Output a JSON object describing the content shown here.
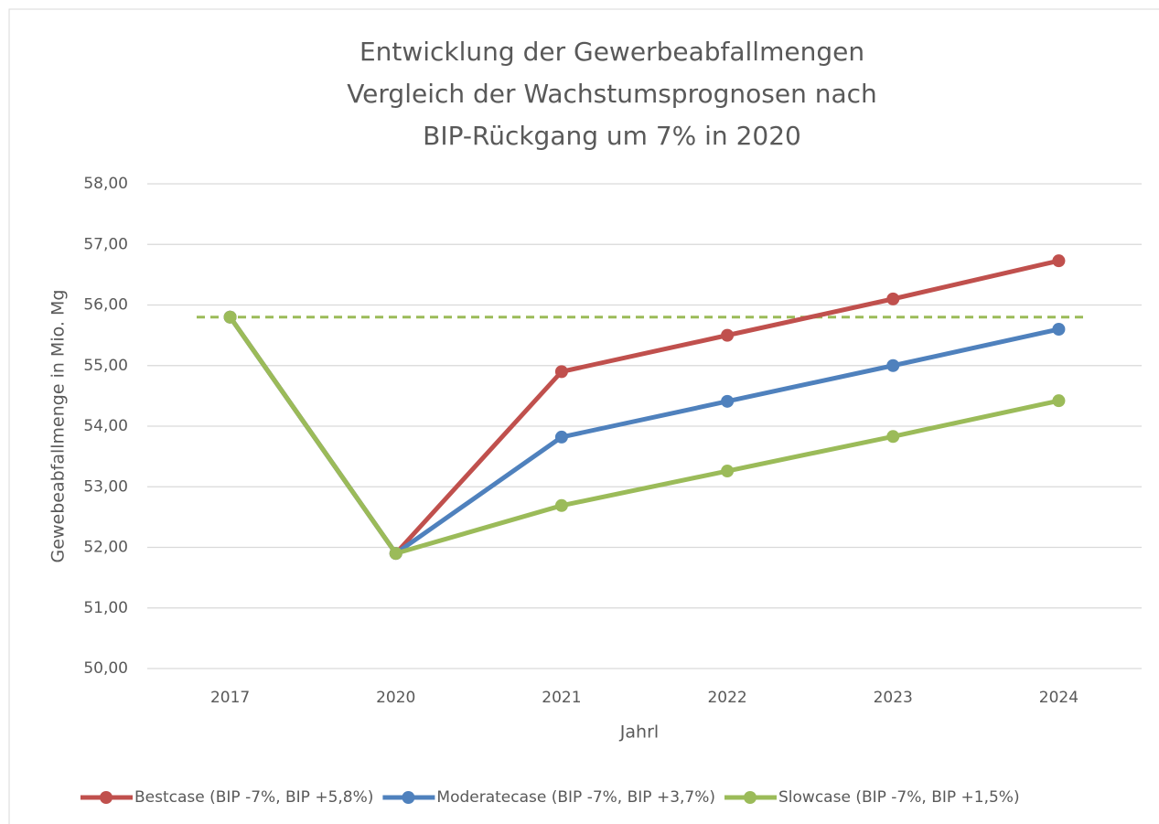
{
  "chart_data": {
    "type": "line",
    "title": [
      "Entwicklung der Gewerbeabfallmengen",
      "Vergleich der Wachstumsprognosen nach",
      "BIP-Rückgang um 7% in 2020"
    ],
    "x_label": "Jahrl",
    "y_label": "Gewebeabfallmenge in Mio. Mg",
    "categories": [
      "2017",
      "2020",
      "2021",
      "2022",
      "2023",
      "2024"
    ],
    "series": [
      {
        "name": "Bestcase (BIP -7%, BIP +5,8%)",
        "color": "#c0504d",
        "values": [
          55.8,
          51.9,
          54.9,
          55.5,
          56.1,
          56.73
        ]
      },
      {
        "name": "Moderatecase (BIP -7%, BIP +3,7%)",
        "color": "#4f81bd",
        "values": [
          55.8,
          51.9,
          53.82,
          54.41,
          55.0,
          55.6
        ]
      },
      {
        "name": "Slowcase (BIP -7%, BIP +1,5%)",
        "color": "#9bbb59",
        "values": [
          55.8,
          51.9,
          52.69,
          53.26,
          53.83,
          54.42
        ]
      }
    ],
    "reference_lines": [
      {
        "value": 55.8,
        "color": "#9bbb59",
        "style": "dashed"
      }
    ],
    "ylim": [
      50,
      58
    ],
    "yticks": [
      {
        "value": 50,
        "label": "50,00"
      },
      {
        "value": 51,
        "label": "51,00"
      },
      {
        "value": 52,
        "label": "52,00"
      },
      {
        "value": 53,
        "label": "53,00"
      },
      {
        "value": 54,
        "label": "54,00"
      },
      {
        "value": 55,
        "label": "55,00"
      },
      {
        "value": 56,
        "label": "56,00"
      },
      {
        "value": 57,
        "label": "57,00"
      },
      {
        "value": 58,
        "label": "58,00"
      }
    ],
    "grid": true,
    "legend": "bottom"
  }
}
